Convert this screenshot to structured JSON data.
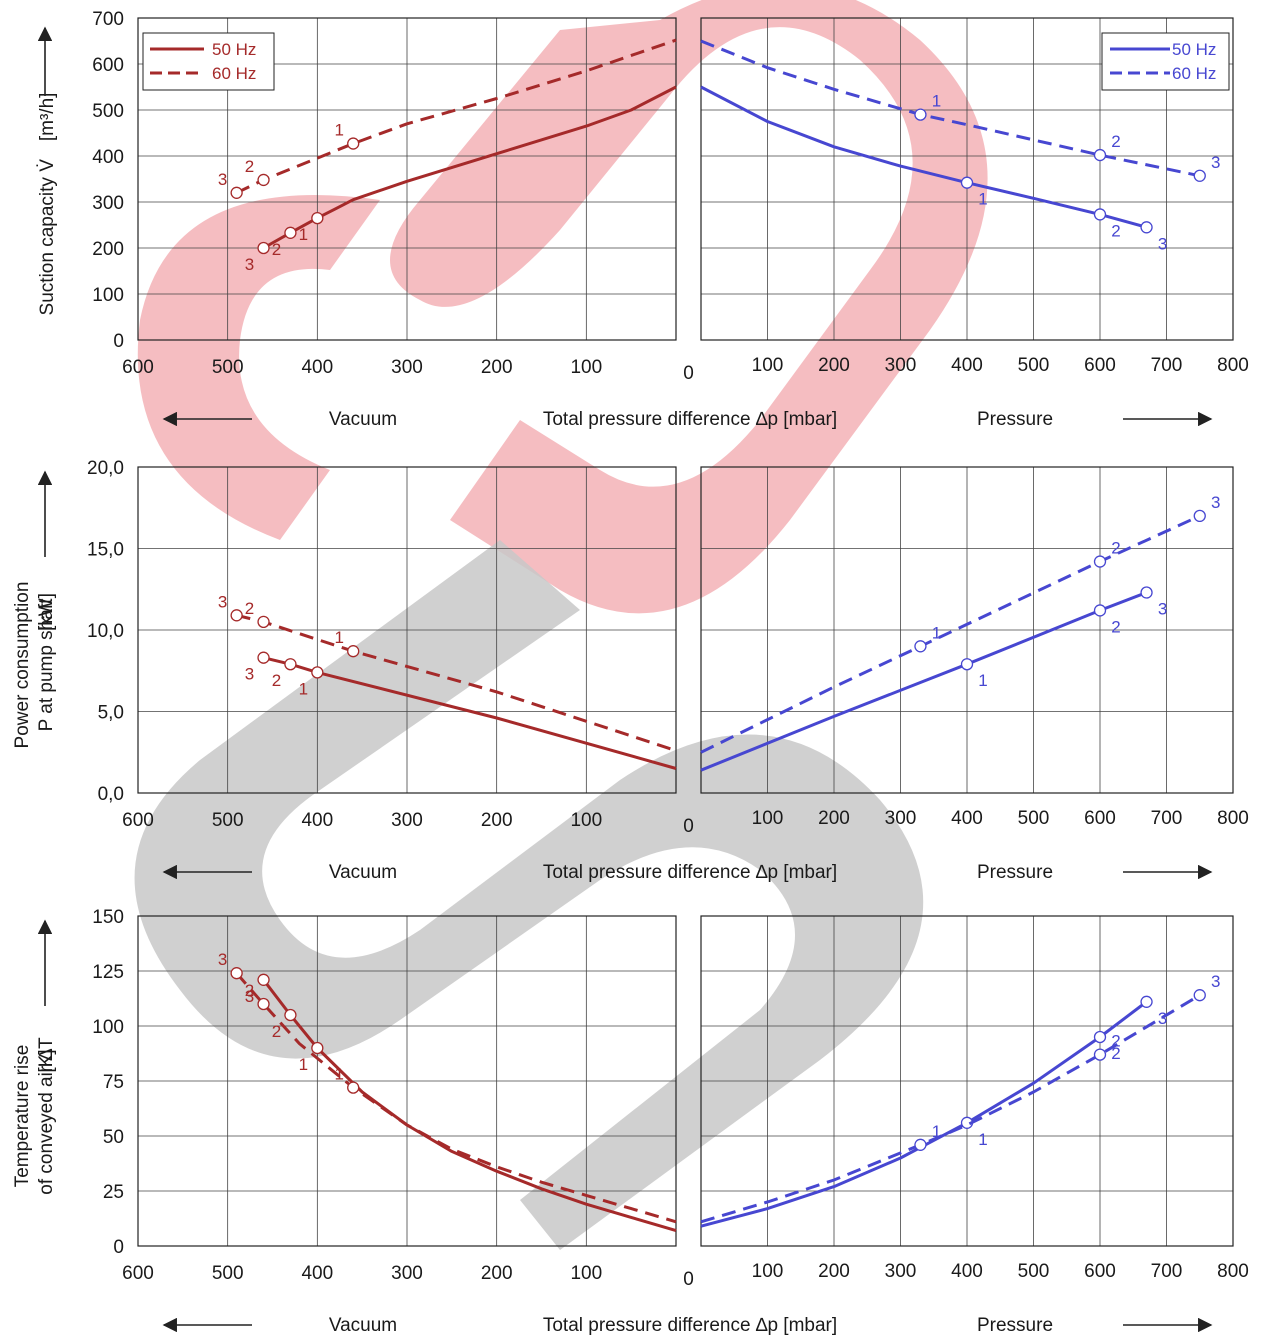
{
  "colors": {
    "vacuum": "#a52a2a",
    "pressure": "#4747d1",
    "watermark_red": "#f4b6ba",
    "watermark_gray": "#c8c8c8"
  },
  "x_axis": {
    "vacuum_ticks": [
      "600",
      "500",
      "400",
      "300",
      "200",
      "100"
    ],
    "pressure_ticks": [
      "100",
      "200",
      "300",
      "400",
      "500",
      "600",
      "700",
      "800"
    ],
    "zero_label": "0",
    "vacuum_label": "Vacuum",
    "center_label": "Total pressure difference  ∆p   [mbar]",
    "pressure_label": "Pressure"
  },
  "legend": {
    "solid": "50 Hz",
    "dashed": "60 Hz"
  },
  "chart_data": [
    {
      "type": "line",
      "ylabel": [
        "Suction capacity V̇",
        "[m³/h]"
      ],
      "yticks": [
        "0",
        "100",
        "200",
        "300",
        "400",
        "500",
        "600",
        "700"
      ],
      "ylim": [
        0,
        700
      ],
      "vacuum_xlim": [
        600,
        0
      ],
      "pressure_xlim": [
        0,
        800
      ],
      "legend_vacuum": "top-left",
      "legend_pressure": "top-right",
      "series": [
        {
          "side": "vacuum",
          "name": "50 Hz",
          "style": "solid",
          "x": [
            460,
            430,
            400,
            380,
            360,
            300,
            200,
            100,
            50,
            0
          ],
          "y": [
            200,
            233,
            265,
            285,
            305,
            345,
            405,
            465,
            500,
            550
          ],
          "points": [
            {
              "x": 400,
              "y": 265,
              "n": "1"
            },
            {
              "x": 430,
              "y": 233,
              "n": "2"
            },
            {
              "x": 460,
              "y": 200,
              "n": "3"
            }
          ]
        },
        {
          "side": "vacuum",
          "name": "60 Hz",
          "style": "dashed",
          "x": [
            490,
            460,
            360,
            300,
            200,
            100,
            0
          ],
          "y": [
            320,
            348,
            427,
            470,
            525,
            585,
            652
          ],
          "points": [
            {
              "x": 360,
              "y": 427,
              "n": "1"
            },
            {
              "x": 460,
              "y": 348,
              "n": "2"
            },
            {
              "x": 490,
              "y": 320,
              "n": "3"
            }
          ]
        },
        {
          "side": "pressure",
          "name": "50 Hz",
          "style": "solid",
          "x": [
            0,
            100,
            200,
            300,
            400,
            500,
            600,
            670
          ],
          "y": [
            550,
            475,
            420,
            378,
            342,
            308,
            273,
            245
          ],
          "points": [
            {
              "x": 400,
              "y": 342,
              "n": "1"
            },
            {
              "x": 600,
              "y": 273,
              "n": "2"
            },
            {
              "x": 670,
              "y": 245,
              "n": "3"
            }
          ]
        },
        {
          "side": "pressure",
          "name": "60 Hz",
          "style": "dashed",
          "x": [
            0,
            100,
            200,
            330,
            400,
            500,
            600,
            750
          ],
          "y": [
            650,
            592,
            545,
            490,
            468,
            435,
            402,
            357
          ],
          "points": [
            {
              "x": 330,
              "y": 490,
              "n": "1"
            },
            {
              "x": 600,
              "y": 402,
              "n": "2"
            },
            {
              "x": 750,
              "y": 357,
              "n": "3"
            }
          ]
        }
      ]
    },
    {
      "type": "line",
      "ylabel": [
        "Power consumption",
        "P at pump shaft",
        "[kW]"
      ],
      "yticks": [
        "0,0",
        "5,0",
        "10,0",
        "15,0",
        "20,0"
      ],
      "ylim": [
        0,
        20
      ],
      "vacuum_xlim": [
        600,
        0
      ],
      "pressure_xlim": [
        0,
        800
      ],
      "series": [
        {
          "side": "vacuum",
          "name": "50 Hz",
          "style": "solid",
          "x": [
            460,
            430,
            400,
            200,
            0
          ],
          "y": [
            8.3,
            7.9,
            7.4,
            4.6,
            1.5
          ],
          "points": [
            {
              "x": 400,
              "y": 7.4,
              "n": "1"
            },
            {
              "x": 430,
              "y": 7.9,
              "n": "2"
            },
            {
              "x": 460,
              "y": 8.3,
              "n": "3"
            }
          ]
        },
        {
          "side": "vacuum",
          "name": "60 Hz",
          "style": "dashed",
          "x": [
            490,
            460,
            360,
            200,
            0
          ],
          "y": [
            10.9,
            10.5,
            8.7,
            6.2,
            2.6
          ],
          "points": [
            {
              "x": 360,
              "y": 8.7,
              "n": "1"
            },
            {
              "x": 460,
              "y": 10.5,
              "n": "2"
            },
            {
              "x": 490,
              "y": 10.9,
              "n": "3"
            }
          ]
        },
        {
          "side": "pressure",
          "name": "50 Hz",
          "style": "solid",
          "x": [
            0,
            200,
            400,
            600,
            670
          ],
          "y": [
            1.4,
            4.7,
            7.9,
            11.2,
            12.3
          ],
          "points": [
            {
              "x": 400,
              "y": 7.9,
              "n": "1"
            },
            {
              "x": 600,
              "y": 11.2,
              "n": "2"
            },
            {
              "x": 670,
              "y": 12.3,
              "n": "3"
            }
          ]
        },
        {
          "side": "pressure",
          "name": "60 Hz",
          "style": "dashed",
          "x": [
            0,
            200,
            330,
            600,
            750
          ],
          "y": [
            2.5,
            6.5,
            9.0,
            14.2,
            17.0
          ],
          "points": [
            {
              "x": 330,
              "y": 9.0,
              "n": "1"
            },
            {
              "x": 600,
              "y": 14.2,
              "n": "2"
            },
            {
              "x": 750,
              "y": 17.0,
              "n": "3"
            }
          ]
        }
      ]
    },
    {
      "type": "line",
      "ylabel": [
        "Temperature rise",
        "of conveyed air ∆T",
        "[K]"
      ],
      "yticks": [
        "0",
        "25",
        "50",
        "75",
        "100",
        "125",
        "150"
      ],
      "ylim": [
        0,
        150
      ],
      "vacuum_xlim": [
        600,
        0
      ],
      "pressure_xlim": [
        0,
        800
      ],
      "series": [
        {
          "side": "vacuum",
          "name": "50 Hz",
          "style": "solid",
          "x": [
            460,
            430,
            400,
            350,
            300,
            250,
            200,
            150,
            100,
            50,
            0
          ],
          "y": [
            121,
            105,
            90,
            70,
            55,
            43,
            34,
            26,
            19,
            13,
            7
          ],
          "points": [
            {
              "x": 400,
              "y": 90,
              "n": "1"
            },
            {
              "x": 430,
              "y": 105,
              "n": "2"
            },
            {
              "x": 460,
              "y": 121,
              "n": "3"
            }
          ]
        },
        {
          "side": "vacuum",
          "name": "60 Hz",
          "style": "dashed",
          "x": [
            490,
            460,
            420,
            360,
            300,
            250,
            200,
            150,
            100,
            50,
            0
          ],
          "y": [
            124,
            110,
            92,
            72,
            55,
            44,
            36,
            29,
            23,
            17,
            11
          ],
          "points": [
            {
              "x": 360,
              "y": 72,
              "n": "1"
            },
            {
              "x": 460,
              "y": 110,
              "n": "2"
            },
            {
              "x": 490,
              "y": 124,
              "n": "3"
            }
          ]
        },
        {
          "side": "pressure",
          "name": "50 Hz",
          "style": "solid",
          "x": [
            0,
            100,
            200,
            300,
            400,
            500,
            600,
            670
          ],
          "y": [
            9,
            17,
            27,
            40,
            56,
            74,
            95,
            111
          ],
          "points": [
            {
              "x": 400,
              "y": 56,
              "n": "1"
            },
            {
              "x": 600,
              "y": 95,
              "n": "2"
            },
            {
              "x": 670,
              "y": 111,
              "n": "3"
            }
          ]
        },
        {
          "side": "pressure",
          "name": "60 Hz",
          "style": "dashed",
          "x": [
            0,
            100,
            200,
            330,
            400,
            500,
            600,
            750
          ],
          "y": [
            11,
            20,
            30,
            46,
            55,
            70,
            87,
            114
          ],
          "points": [
            {
              "x": 330,
              "y": 46,
              "n": "1"
            },
            {
              "x": 600,
              "y": 87,
              "n": "2"
            },
            {
              "x": 750,
              "y": 114,
              "n": "3"
            }
          ]
        }
      ]
    }
  ]
}
